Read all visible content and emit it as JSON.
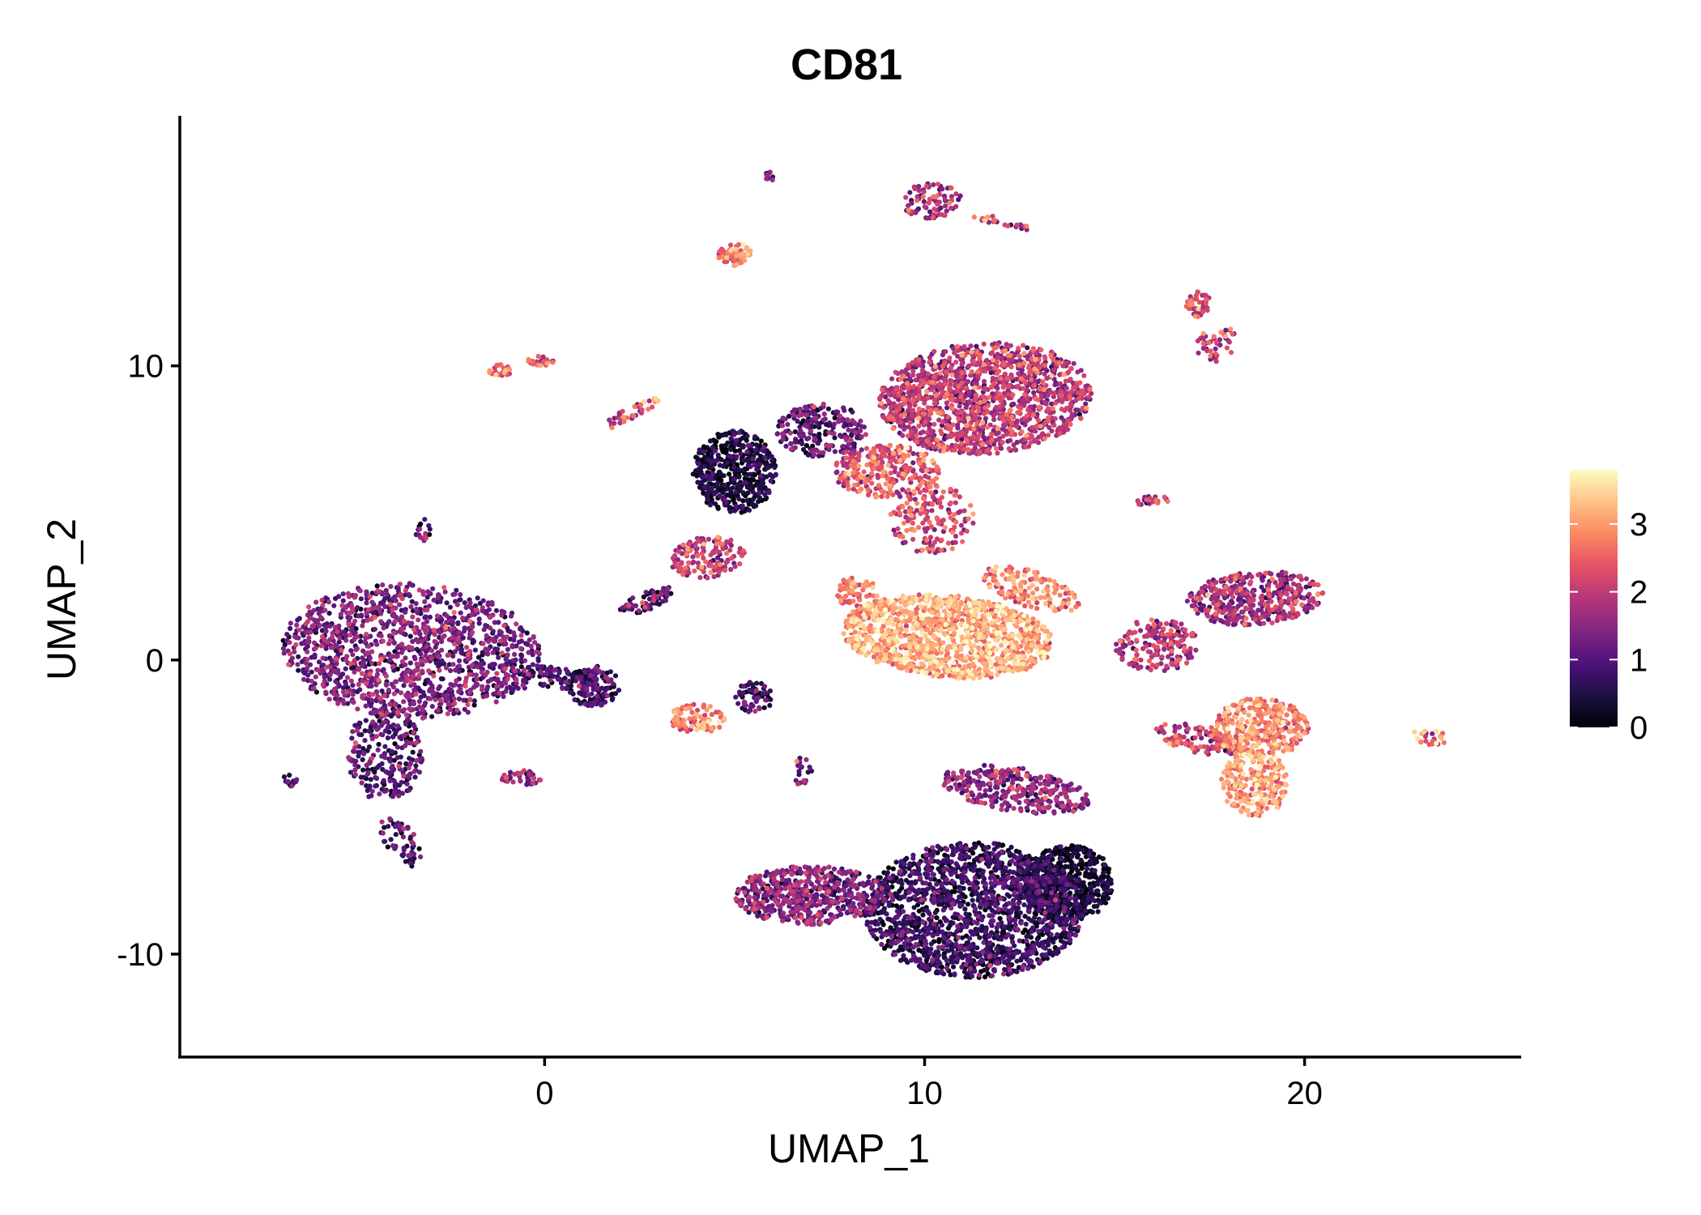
{
  "chart_data": {
    "type": "scatter",
    "title": "CD81",
    "xlabel": "UMAP_1",
    "ylabel": "UMAP_2",
    "xlim": [
      -9.6,
      25.7
    ],
    "ylim": [
      -13.5,
      18.5
    ],
    "xticks": [
      0,
      10,
      20
    ],
    "yticks": [
      -10,
      0,
      10
    ],
    "x_tick_labels": [
      "0",
      "10",
      "20"
    ],
    "y_tick_labels": [
      "-10",
      "0",
      "10"
    ],
    "colorscale": {
      "name": "magma",
      "range": [
        0,
        3.8
      ],
      "ticks": [
        0,
        1,
        2,
        3
      ],
      "tick_labels": [
        "0",
        "1",
        "2",
        "3"
      ],
      "stops": [
        "#000004",
        "#1c1044",
        "#4f127b",
        "#812581",
        "#b5367a",
        "#e55064",
        "#fb8761",
        "#fec287",
        "#fcfdbf"
      ]
    },
    "legend_position": "right",
    "grid": false,
    "clusters": [
      {
        "cx": -3.5,
        "cy": 0.3,
        "rx": 3.4,
        "ry": 2.3,
        "n": 1300,
        "mean": 1.2,
        "spread": 0.5,
        "rot": -0.1
      },
      {
        "cx": -4.2,
        "cy": -3.2,
        "rx": 1.0,
        "ry": 1.6,
        "n": 250,
        "mean": 0.9,
        "spread": 0.5,
        "rot": 0.0
      },
      {
        "cx": -3.8,
        "cy": -6.2,
        "rx": 0.5,
        "ry": 0.9,
        "n": 60,
        "mean": 0.8,
        "spread": 0.5,
        "rot": 0.4
      },
      {
        "cx": 1.3,
        "cy": -0.9,
        "rx": 0.7,
        "ry": 0.7,
        "n": 130,
        "mean": 0.6,
        "spread": 0.5,
        "rot": 0.0
      },
      {
        "cx": 0.3,
        "cy": -0.6,
        "rx": 1.2,
        "ry": 0.35,
        "n": 80,
        "mean": 0.7,
        "spread": 0.5,
        "rot": -0.2
      },
      {
        "cx": 4.3,
        "cy": 3.5,
        "rx": 1.0,
        "ry": 0.7,
        "n": 140,
        "mean": 1.9,
        "spread": 0.5,
        "rot": 0.3
      },
      {
        "cx": 2.7,
        "cy": 2.0,
        "rx": 0.8,
        "ry": 0.3,
        "n": 70,
        "mean": 1.0,
        "spread": 0.6,
        "rot": 0.5
      },
      {
        "cx": 5.0,
        "cy": 6.4,
        "rx": 1.1,
        "ry": 1.4,
        "n": 480,
        "mean": 0.25,
        "spread": 0.35,
        "rot": 0.0
      },
      {
        "cx": 7.3,
        "cy": 7.8,
        "rx": 1.2,
        "ry": 0.9,
        "n": 220,
        "mean": 1.0,
        "spread": 0.5,
        "rot": 0.0
      },
      {
        "cx": 11.6,
        "cy": 8.9,
        "rx": 2.8,
        "ry": 1.9,
        "n": 1400,
        "mean": 1.8,
        "spread": 0.5,
        "rot": 0.1
      },
      {
        "cx": 9.0,
        "cy": 6.4,
        "rx": 1.4,
        "ry": 0.9,
        "n": 280,
        "mean": 2.3,
        "spread": 0.5,
        "rot": 0.0
      },
      {
        "cx": 10.2,
        "cy": 4.8,
        "rx": 1.1,
        "ry": 1.2,
        "n": 160,
        "mean": 2.1,
        "spread": 0.5,
        "rot": 0.0
      },
      {
        "cx": 10.6,
        "cy": 0.8,
        "rx": 2.8,
        "ry": 1.4,
        "n": 1100,
        "mean": 3.0,
        "spread": 0.4,
        "rot": -0.12
      },
      {
        "cx": 12.8,
        "cy": 2.4,
        "rx": 1.4,
        "ry": 0.6,
        "n": 140,
        "mean": 2.7,
        "spread": 0.4,
        "rot": -0.45
      },
      {
        "cx": 8.2,
        "cy": 2.3,
        "rx": 0.6,
        "ry": 0.5,
        "n": 60,
        "mean": 2.6,
        "spread": 0.4,
        "rot": 0.0
      },
      {
        "cx": 7.0,
        "cy": -8.0,
        "rx": 2.0,
        "ry": 1.0,
        "n": 550,
        "mean": 1.3,
        "spread": 0.5,
        "rot": 0.0
      },
      {
        "cx": 11.3,
        "cy": -8.5,
        "rx": 2.9,
        "ry": 2.3,
        "n": 1700,
        "mean": 0.55,
        "spread": 0.45,
        "rot": 0.0
      },
      {
        "cx": 13.8,
        "cy": -7.6,
        "rx": 1.2,
        "ry": 1.3,
        "n": 500,
        "mean": 0.2,
        "spread": 0.3,
        "rot": 0.0
      },
      {
        "cx": 12.4,
        "cy": -4.4,
        "rx": 2.0,
        "ry": 0.75,
        "n": 320,
        "mean": 1.4,
        "spread": 0.5,
        "rot": -0.2
      },
      {
        "cx": 16.1,
        "cy": 0.5,
        "rx": 1.1,
        "ry": 0.9,
        "n": 180,
        "mean": 1.8,
        "spread": 0.5,
        "rot": 0.0
      },
      {
        "cx": 17.2,
        "cy": -2.7,
        "rx": 1.2,
        "ry": 0.45,
        "n": 110,
        "mean": 1.9,
        "spread": 0.6,
        "rot": -0.3
      },
      {
        "cx": 18.8,
        "cy": -2.3,
        "rx": 1.3,
        "ry": 1.0,
        "n": 320,
        "mean": 2.7,
        "spread": 0.4,
        "rot": 0.0
      },
      {
        "cx": 18.7,
        "cy": -4.2,
        "rx": 0.9,
        "ry": 1.1,
        "n": 220,
        "mean": 2.9,
        "spread": 0.4,
        "rot": 0.0
      },
      {
        "cx": 18.7,
        "cy": 2.1,
        "rx": 1.8,
        "ry": 0.9,
        "n": 420,
        "mean": 1.6,
        "spread": 0.5,
        "rot": 0.1
      },
      {
        "cx": 4.0,
        "cy": -2.0,
        "rx": 0.75,
        "ry": 0.5,
        "n": 90,
        "mean": 2.7,
        "spread": 0.4,
        "rot": 0.0
      },
      {
        "cx": 5.5,
        "cy": -1.3,
        "rx": 0.5,
        "ry": 0.55,
        "n": 60,
        "mean": 0.8,
        "spread": 0.5,
        "rot": 0.0
      },
      {
        "cx": 6.8,
        "cy": -3.8,
        "rx": 0.25,
        "ry": 0.5,
        "n": 20,
        "mean": 1.0,
        "spread": 0.6,
        "rot": 0.0
      },
      {
        "cx": -0.6,
        "cy": -4.0,
        "rx": 0.55,
        "ry": 0.25,
        "n": 40,
        "mean": 1.4,
        "spread": 0.5,
        "rot": 0.0
      },
      {
        "cx": -6.7,
        "cy": -4.1,
        "rx": 0.2,
        "ry": 0.2,
        "n": 12,
        "mean": 1.0,
        "spread": 0.5,
        "rot": 0.0
      },
      {
        "cx": -3.2,
        "cy": 4.4,
        "rx": 0.2,
        "ry": 0.4,
        "n": 15,
        "mean": 1.0,
        "spread": 0.5,
        "rot": 0.0
      },
      {
        "cx": -1.2,
        "cy": 9.8,
        "rx": 0.3,
        "ry": 0.25,
        "n": 25,
        "mean": 2.4,
        "spread": 0.5,
        "rot": 0.0
      },
      {
        "cx": -0.1,
        "cy": 10.2,
        "rx": 0.35,
        "ry": 0.2,
        "n": 25,
        "mean": 2.3,
        "spread": 0.5,
        "rot": 0.0
      },
      {
        "cx": 2.3,
        "cy": 8.4,
        "rx": 0.9,
        "ry": 0.2,
        "n": 40,
        "mean": 2.2,
        "spread": 0.6,
        "rot": 0.6
      },
      {
        "cx": 5.0,
        "cy": 13.8,
        "rx": 0.45,
        "ry": 0.4,
        "n": 60,
        "mean": 2.6,
        "spread": 0.5,
        "rot": 0.0
      },
      {
        "cx": 5.9,
        "cy": 16.4,
        "rx": 0.12,
        "ry": 0.2,
        "n": 10,
        "mean": 1.2,
        "spread": 0.6,
        "rot": 0.0
      },
      {
        "cx": 10.2,
        "cy": 15.6,
        "rx": 0.8,
        "ry": 0.6,
        "n": 80,
        "mean": 1.7,
        "spread": 0.6,
        "rot": 0.0
      },
      {
        "cx": 12.0,
        "cy": 14.9,
        "rx": 0.9,
        "ry": 0.12,
        "n": 25,
        "mean": 1.8,
        "spread": 0.6,
        "rot": -0.3
      },
      {
        "cx": 17.2,
        "cy": 12.1,
        "rx": 0.35,
        "ry": 0.45,
        "n": 40,
        "mean": 2.1,
        "spread": 0.5,
        "rot": 0.0
      },
      {
        "cx": 17.7,
        "cy": 10.8,
        "rx": 0.5,
        "ry": 0.7,
        "n": 45,
        "mean": 1.9,
        "spread": 0.6,
        "rot": -0.4
      },
      {
        "cx": 16.0,
        "cy": 5.4,
        "rx": 0.45,
        "ry": 0.2,
        "n": 20,
        "mean": 1.8,
        "spread": 0.6,
        "rot": 0.0
      },
      {
        "cx": 23.3,
        "cy": -2.6,
        "rx": 0.45,
        "ry": 0.3,
        "n": 25,
        "mean": 2.5,
        "spread": 0.5,
        "rot": -0.4
      }
    ]
  }
}
